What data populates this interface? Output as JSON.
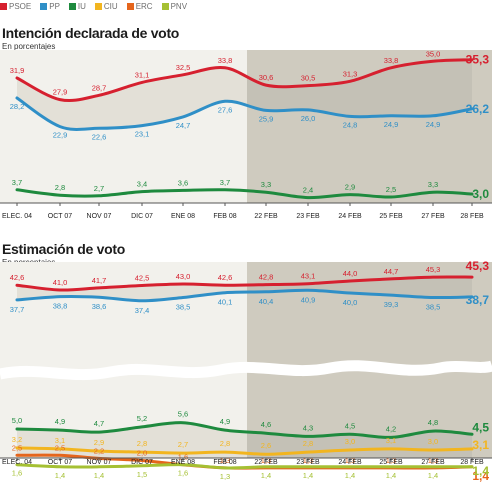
{
  "legend": [
    {
      "name": "PSOE",
      "color": "#d6202f"
    },
    {
      "name": "PP",
      "color": "#2f8fc7"
    },
    {
      "name": "IU",
      "color": "#1e8a3e"
    },
    {
      "name": "CIU",
      "color": "#f2b51f"
    },
    {
      "name": "ERC",
      "color": "#e5651c"
    },
    {
      "name": "PNV",
      "color": "#a5c033"
    }
  ],
  "chart_data": [
    {
      "type": "line",
      "title": "Intención declarada de voto",
      "subtitle": "En porcentajes",
      "categories": [
        "ELEC. 04",
        "OCT 07",
        "NOV 07",
        "DIC 07",
        "ENE 08",
        "FEB 08",
        "22 FEB",
        "23 FEB",
        "24 FEB",
        "25 FEB",
        "27 FEB",
        "28 FEB"
      ],
      "series": [
        {
          "name": "PSOE",
          "color": "#d6202f",
          "values": [
            31.9,
            27.9,
            28.7,
            31.1,
            32.5,
            33.8,
            30.6,
            30.5,
            31.3,
            33.8,
            35.0,
            35.3
          ],
          "labels": [
            "31,9",
            "27,9",
            "28,7",
            "31,1",
            "32,5",
            "33,8",
            "30,6",
            "30,5",
            "31,3",
            "33,8",
            "35,0",
            "35,3"
          ]
        },
        {
          "name": "PP",
          "color": "#2f8fc7",
          "values": [
            28.2,
            22.9,
            22.6,
            23.1,
            24.7,
            27.6,
            25.9,
            26.0,
            24.8,
            24.9,
            24.9,
            26.2
          ],
          "labels": [
            "28,2",
            "22,9",
            "22,6",
            "23,1",
            "24,7",
            "27,6",
            "25,9",
            "26,0",
            "24,8",
            "24,9",
            "24,9",
            "26,2"
          ]
        },
        {
          "name": "IU",
          "color": "#1e8a3e",
          "values": [
            3.7,
            2.8,
            2.7,
            3.4,
            3.6,
            3.7,
            3.3,
            2.4,
            2.9,
            2.5,
            3.3,
            3.0
          ],
          "labels": [
            "3,7",
            "2,8",
            "2,7",
            "3,4",
            "3,6",
            "3,7",
            "3,3",
            "2,4",
            "2,9",
            "2,5",
            "3,3",
            "3,0"
          ]
        }
      ]
    },
    {
      "type": "line",
      "title": "Estimación de voto",
      "subtitle": "En porcentajes",
      "categories": [
        "ELEC. 04",
        "OCT 07",
        "NOV 07",
        "DIC 07",
        "ENE 08",
        "FEB 08",
        "22 FEB",
        "23 FEB",
        "24 FEB",
        "25 FEB",
        "27 FEB",
        "28 FEB"
      ],
      "series": [
        {
          "name": "PSOE",
          "color": "#d6202f",
          "values": [
            42.6,
            41.0,
            41.7,
            42.5,
            43.0,
            42.6,
            42.8,
            43.1,
            44.0,
            44.7,
            45.3,
            45.3
          ],
          "labels": [
            "42,6",
            "41,0",
            "41,7",
            "42,5",
            "43,0",
            "42,6",
            "42,8",
            "43,1",
            "44,0",
            "44,7",
            "45,3",
            "45,3"
          ]
        },
        {
          "name": "PP",
          "color": "#2f8fc7",
          "values": [
            37.7,
            38.8,
            38.6,
            37.4,
            38.5,
            40.1,
            40.4,
            40.9,
            40.0,
            39.3,
            38.5,
            38.7
          ],
          "labels": [
            "37,7",
            "38,8",
            "38,6",
            "37,4",
            "38,5",
            "40,1",
            "40,4",
            "40,9",
            "40,0",
            "39,3",
            "38,5",
            "38,7"
          ]
        },
        {
          "name": "IU",
          "color": "#1e8a3e",
          "values": [
            5.0,
            4.9,
            4.7,
            5.2,
            5.6,
            4.9,
            4.6,
            4.3,
            4.5,
            4.2,
            4.8,
            4.5
          ],
          "labels": [
            "5,0",
            "4,9",
            "4,7",
            "5,2",
            "5,6",
            "4,9",
            "4,6",
            "4,3",
            "4,5",
            "4,2",
            "4,8",
            "4,5"
          ]
        },
        {
          "name": "CIU",
          "color": "#f2b51f",
          "values": [
            3.2,
            3.1,
            2.9,
            2.8,
            2.7,
            2.8,
            2.6,
            2.8,
            3.0,
            3.1,
            3.0,
            3.1
          ],
          "labels": [
            "3,2",
            "3,1",
            "2,9",
            "2,8",
            "2,7",
            "2,8",
            "2,6",
            "2,8",
            "3,0",
            "3,1",
            "3,0",
            "3,1"
          ]
        },
        {
          "name": "ERC",
          "color": "#e5651c",
          "values": [
            2.5,
            2.5,
            2.2,
            2.0,
            1.6,
            1.3,
            1.3,
            1.3,
            1.3,
            1.3,
            1.3,
            1.4
          ],
          "labels": [
            "2,5",
            "2,5",
            "2,2",
            "2,0",
            "1,6",
            "1,3",
            "1,3",
            "1,3",
            "1,3",
            "1,3",
            "1,3",
            "1,4"
          ]
        },
        {
          "name": "PNV",
          "color": "#a5c033",
          "values": [
            1.6,
            1.4,
            1.4,
            1.5,
            1.6,
            1.3,
            1.4,
            1.4,
            1.4,
            1.4,
            1.4,
            1.4
          ],
          "labels": [
            "1,6",
            "1,4",
            "1,4",
            "1,5",
            "1,6",
            "1,3",
            "1,4",
            "1,4",
            "1,4",
            "1,4",
            "1,4",
            "1,4"
          ]
        }
      ]
    }
  ]
}
